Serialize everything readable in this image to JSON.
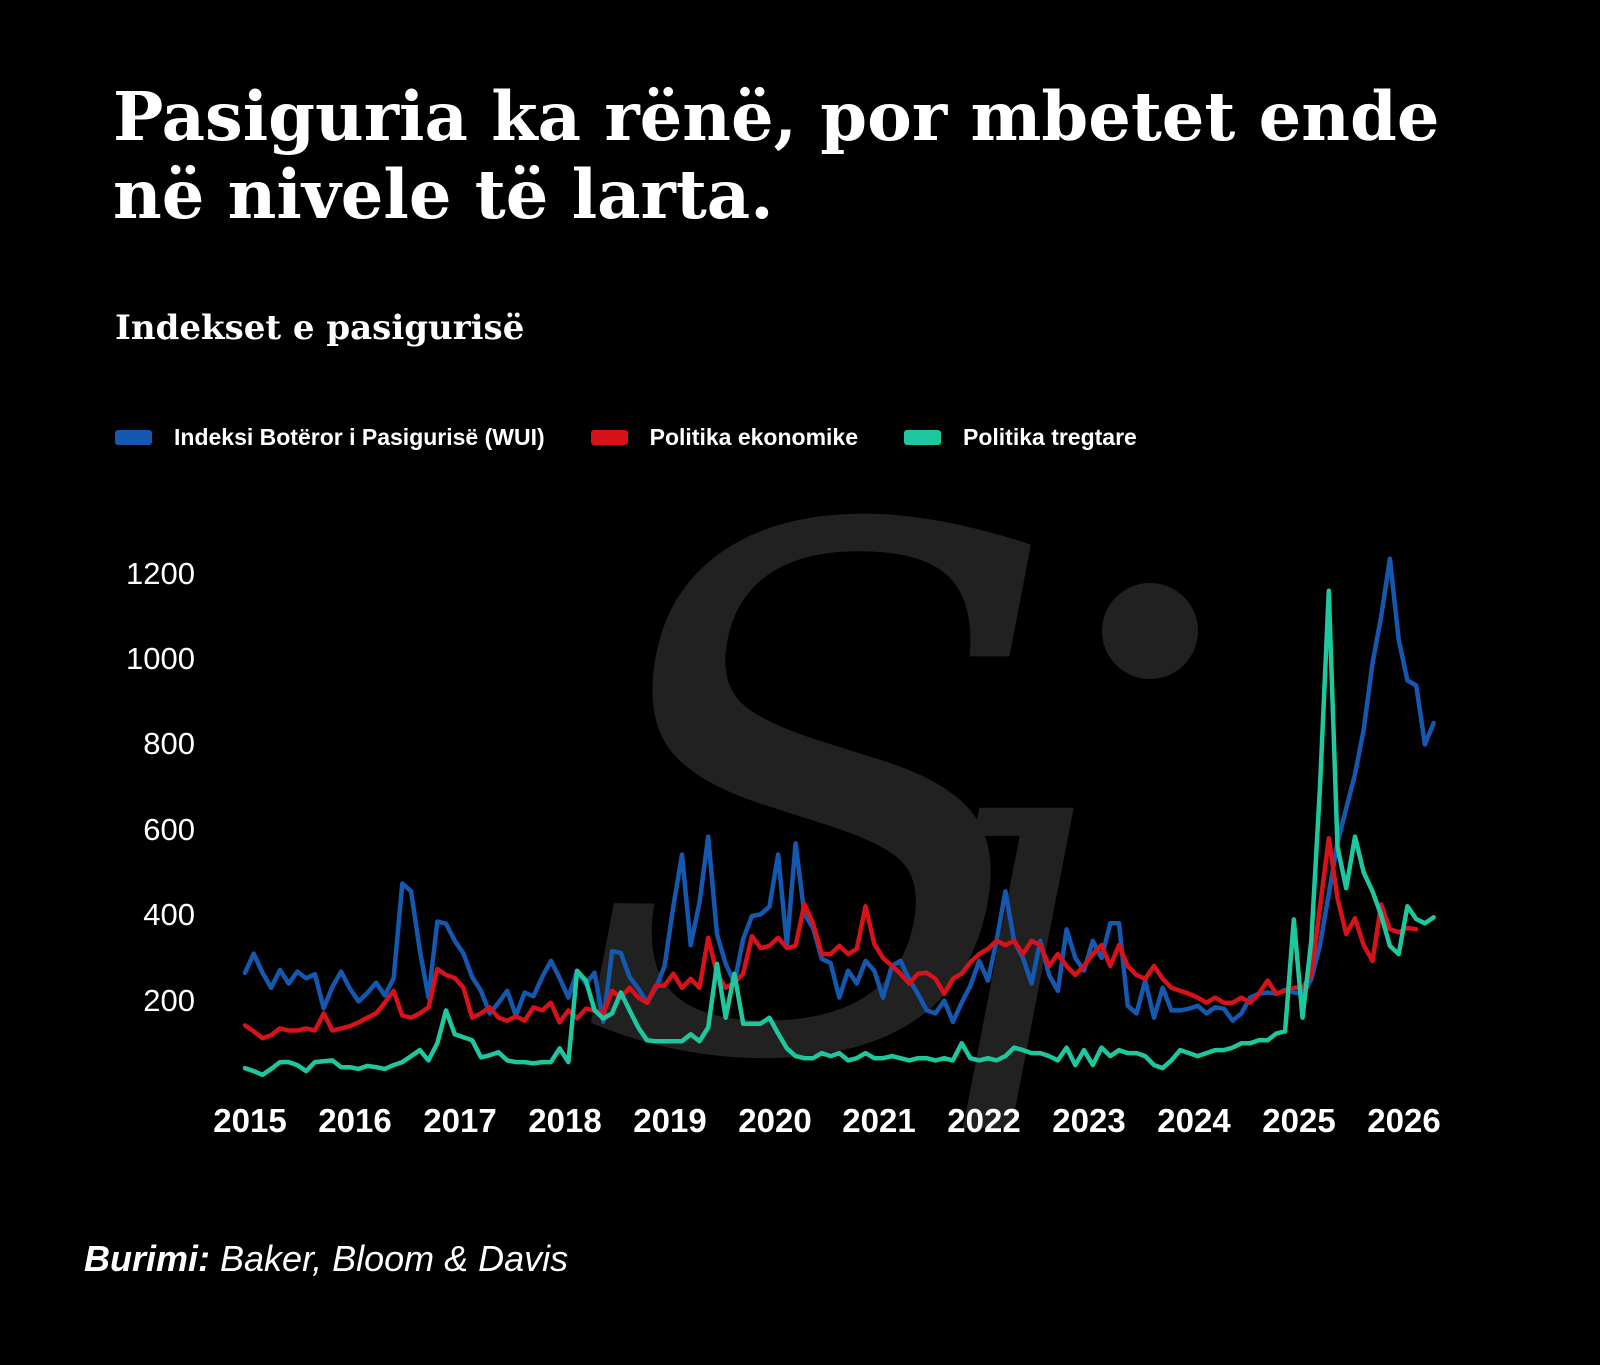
{
  "title_line1": "Pasiguria ka rënë, por mbetet ende",
  "title_line2": "në nivele të larta.",
  "subtitle": "Indekset e pasigurisë",
  "source": {
    "label": "Burimi:",
    "value": "Baker, Bloom & Davis"
  },
  "watermark": {
    "letter_s": "S",
    "letter_j": "ȷ"
  },
  "colors": {
    "background": "#000000",
    "text": "#ffffff",
    "watermark": "#212121",
    "wui_blue": "#1558B0",
    "epu_red": "#D8121A",
    "tpu_teal": "#1FC79E"
  },
  "chart_data": {
    "type": "line",
    "title": "Indekset e pasigurisë",
    "xlabel": "",
    "ylabel": "",
    "frequency": "monthly",
    "x_start": "2015-01",
    "x_end": "2026",
    "grid": false,
    "legend_position": "top-left",
    "ylim": [
      0,
      1280
    ],
    "xticks": [
      "2015",
      "2016",
      "2017",
      "2018",
      "2019",
      "2020",
      "2021",
      "2022",
      "2023",
      "2024",
      "2025",
      "2026"
    ],
    "yticks": [
      "1200",
      "1000",
      "800",
      "600",
      "400",
      "200"
    ],
    "ytick_values": [
      1200,
      1000,
      800,
      600,
      400,
      200
    ],
    "series": [
      {
        "name": "Indeksi Botëror i Pasigurisë (WUI)",
        "color": "#1558B0",
        "values": [
          265,
          310,
          265,
          230,
          272,
          240,
          268,
          252,
          262,
          182,
          232,
          268,
          228,
          198,
          218,
          242,
          212,
          252,
          474,
          456,
          318,
          207,
          385,
          380,
          340,
          310,
          255,
          223,
          170,
          195,
          223,
          165,
          219,
          210,
          255,
          293,
          253,
          207,
          270,
          240,
          265,
          150,
          316,
          312,
          255,
          228,
          195,
          230,
          280,
          420,
          542,
          330,
          430,
          584,
          355,
          286,
          242,
          344,
          398,
          402,
          420,
          542,
          330,
          568,
          402,
          370,
          298,
          288,
          207,
          270,
          240,
          293,
          270,
          207,
          281,
          293,
          250,
          215,
          177,
          170,
          200,
          150,
          195,
          235,
          293,
          247,
          340,
          456,
          340,
          300,
          240,
          340,
          260,
          223,
          367,
          300,
          270,
          340,
          300,
          381,
          381,
          188,
          170,
          247,
          160,
          230,
          177,
          177,
          181,
          188,
          170,
          184,
          181,
          153,
          170,
          207,
          216,
          219,
          216,
          225,
          219,
          216,
          250,
          330,
          450,
          570,
          650,
          730,
          835,
          990,
          1100,
          1235,
          1045,
          950,
          938,
          800,
          850
        ]
      },
      {
        "name": "Politika ekonomike",
        "color": "#D8121A",
        "values": [
          142,
          128,
          112,
          119,
          135,
          130,
          130,
          135,
          130,
          170,
          130,
          135,
          140,
          149,
          160,
          170,
          195,
          223,
          165,
          160,
          170,
          184,
          274,
          260,
          253,
          230,
          160,
          170,
          184,
          160,
          153,
          163,
          153,
          184,
          177,
          195,
          149,
          177,
          158,
          181,
          177,
          170,
          223,
          207,
          230,
          207,
          195,
          235,
          235,
          263,
          230,
          251,
          230,
          347,
          263,
          230,
          242,
          263,
          351,
          323,
          328,
          347,
          323,
          328,
          426,
          381,
          309,
          309,
          328,
          309,
          321,
          421,
          333,
          300,
          281,
          263,
          240,
          263,
          265,
          251,
          216,
          251,
          263,
          290,
          309,
          321,
          340,
          330,
          340,
          309,
          340,
          330,
          281,
          309,
          281,
          260,
          281,
          309,
          330,
          281,
          330,
          281,
          260,
          251,
          281,
          251,
          230,
          223,
          216,
          207,
          195,
          207,
          195,
          195,
          207,
          195,
          216,
          247,
          216,
          223,
          230,
          230,
          260,
          420,
          580,
          440,
          356,
          393,
          330,
          293,
          425,
          367,
          360,
          370,
          367
        ]
      },
      {
        "name": "Politika tregtare",
        "color": "#1FC79E",
        "values": [
          42,
          35,
          26,
          40,
          56,
          56,
          49,
          35,
          56,
          58,
          60,
          44,
          44,
          40,
          47,
          44,
          40,
          49,
          56,
          70,
          84,
          60,
          100,
          177,
          121,
          114,
          107,
          67,
          72,
          79,
          60,
          56,
          56,
          53,
          56,
          56,
          88,
          56,
          270,
          247,
          177,
          158,
          170,
          219,
          177,
          137,
          107,
          105,
          105,
          105,
          105,
          121,
          105,
          137,
          286,
          160,
          263,
          146,
          146,
          146,
          160,
          123,
          88,
          70,
          65,
          65,
          77,
          70,
          77,
          60,
          65,
          77,
          65,
          65,
          70,
          65,
          60,
          65,
          65,
          60,
          65,
          60,
          100,
          65,
          60,
          65,
          60,
          70,
          90,
          84,
          77,
          77,
          70,
          60,
          90,
          49,
          84,
          49,
          90,
          70,
          84,
          77,
          77,
          70,
          49,
          42,
          60,
          84,
          77,
          70,
          77,
          84,
          84,
          90,
          100,
          100,
          107,
          107,
          123,
          128,
          390,
          160,
          340,
          700,
          1160,
          560,
          463,
          584,
          500,
          456,
          400,
          328,
          309,
          421,
          391,
          381,
          395
        ]
      }
    ]
  }
}
